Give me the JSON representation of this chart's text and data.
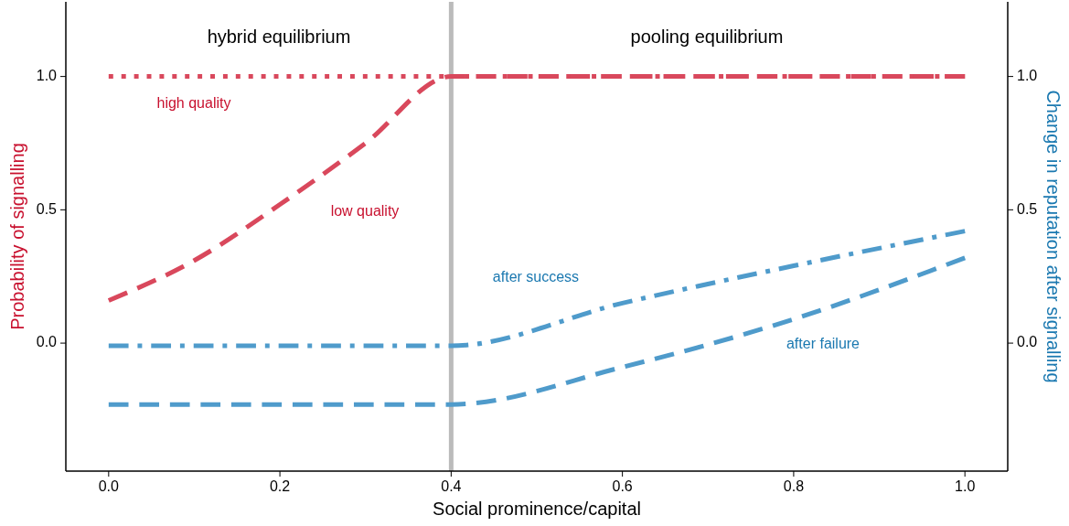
{
  "chart_data": {
    "type": "line",
    "xlabel": "Social prominence/capital",
    "ylabel": "Probability of signalling",
    "y2label": "Change in reputation after signalling",
    "x": [
      0,
      0.1,
      0.2,
      0.3,
      0.4,
      0.6,
      0.8,
      1.0
    ],
    "xlim": [
      -0.05,
      1.05
    ],
    "xticks": [
      {
        "value": 0,
        "label": "0.0"
      },
      {
        "value": 0.2,
        "label": "0.2"
      },
      {
        "value": 0.4,
        "label": "0.4"
      },
      {
        "value": 0.6,
        "label": "0.6"
      },
      {
        "value": 0.8,
        "label": "0.8"
      },
      {
        "value": 1,
        "label": "1.0"
      }
    ],
    "ylim": [
      -0.48,
      1.28
    ],
    "yticks": [
      {
        "value": 0,
        "label": "0.0"
      },
      {
        "value": 0.5,
        "label": "0.5"
      },
      {
        "value": 1,
        "label": "1.0"
      }
    ],
    "y2lim": [
      -0.48,
      1.28
    ],
    "y2ticks": [
      {
        "value": 0,
        "label": "0.0"
      },
      {
        "value": 0.5,
        "label": "0.5"
      },
      {
        "value": 1,
        "label": "1.0"
      }
    ],
    "series": [
      {
        "name": "high quality",
        "color": "#d9485c",
        "line_style": "dotted",
        "values": [
          1,
          1,
          1,
          1,
          1,
          1,
          1,
          1
        ]
      },
      {
        "name": "low quality",
        "color": "#d9485c",
        "line_style": "dashed",
        "values": [
          0.16,
          0.31,
          0.52,
          0.75,
          1,
          1,
          1,
          1
        ]
      },
      {
        "name": "after success",
        "color": "#4f9bcb",
        "line_style": "dashdot",
        "values": [
          -0.01,
          -0.01,
          -0.01,
          -0.01,
          -0.01,
          0.15,
          0.29,
          0.42
        ]
      },
      {
        "name": "after failure",
        "color": "#4f9bcb",
        "line_style": "dashed",
        "values": [
          -0.23,
          -0.23,
          -0.23,
          -0.23,
          -0.23,
          -0.09,
          0.09,
          0.32
        ]
      }
    ],
    "ref_lines": [
      {
        "axis": "x",
        "value": 0.4,
        "color": "#bbbbbb"
      }
    ],
    "annotations": [
      "hybrid equilibrium",
      "pooling equilibrium"
    ],
    "grid": false
  }
}
